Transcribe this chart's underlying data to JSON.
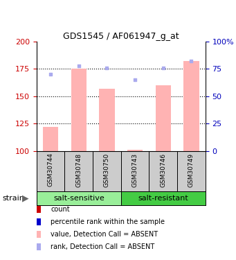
{
  "title": "GDS1545 / AF061947_g_at",
  "samples": [
    "GSM30744",
    "GSM30748",
    "GSM30750",
    "GSM30743",
    "GSM30746",
    "GSM30749"
  ],
  "bar_values": [
    122,
    175,
    157,
    101,
    160,
    182
  ],
  "bar_bottom": 100,
  "rank_values": [
    170,
    178,
    176,
    165,
    176,
    182
  ],
  "bar_color": "#ffb3b3",
  "rank_dot_color": "#aaaaee",
  "count_color": "#cc0000",
  "percentile_color": "#0000cc",
  "ylim_left": [
    100,
    200
  ],
  "ylim_right": [
    0,
    100
  ],
  "yticks_left": [
    100,
    125,
    150,
    175,
    200
  ],
  "yticks_right": [
    0,
    25,
    50,
    75,
    100
  ],
  "ytick_labels_left": [
    "100",
    "125",
    "150",
    "175",
    "200"
  ],
  "ytick_labels_right": [
    "0",
    "25",
    "50",
    "75",
    "100%"
  ],
  "group_spans": [
    {
      "label": "salt-sensitive",
      "start": 0,
      "end": 2,
      "color": "#99ee99"
    },
    {
      "label": "salt-resistant",
      "start": 3,
      "end": 5,
      "color": "#44cc44"
    }
  ],
  "legend_items": [
    {
      "label": "count",
      "color": "#cc0000"
    },
    {
      "label": "percentile rank within the sample",
      "color": "#0000cc"
    },
    {
      "label": "value, Detection Call = ABSENT",
      "color": "#ffb3b3"
    },
    {
      "label": "rank, Detection Call = ABSENT",
      "color": "#aaaaee"
    }
  ],
  "bar_width": 0.55,
  "left_tick_color": "#cc0000",
  "right_tick_color": "#0000bb",
  "title_fontsize": 9,
  "tick_fontsize": 8,
  "sample_fontsize": 6.5,
  "group_fontsize": 8,
  "legend_fontsize": 7
}
